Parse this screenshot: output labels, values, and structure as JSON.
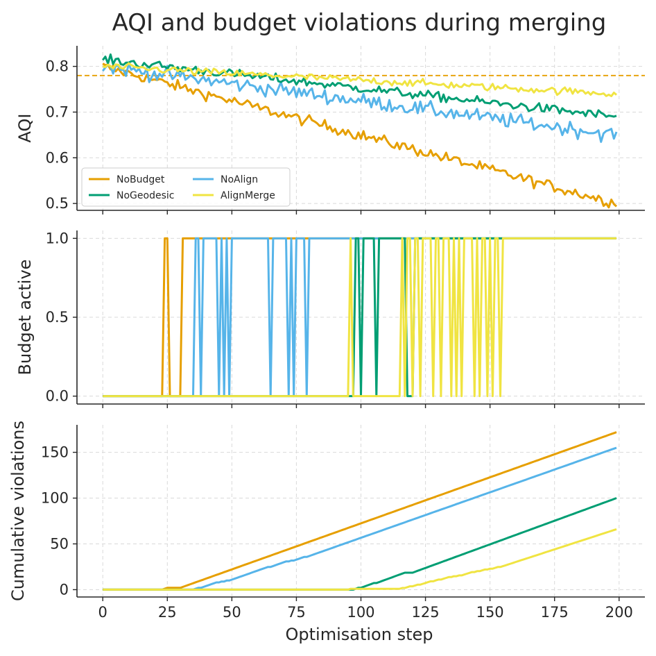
{
  "chart_data": {
    "type": "line",
    "title": "AQI and budget violations during merging",
    "xlabel": "Optimisation step",
    "xlim": [
      -10,
      210
    ],
    "x_ticks": [
      0,
      25,
      50,
      75,
      100,
      125,
      150,
      175,
      200
    ],
    "n_steps": 200,
    "colors": {
      "NoBudget": "#E69F00",
      "NoAlign": "#56B4E9",
      "NoGeodesic": "#009E73",
      "AlignMerge": "#F0E442"
    },
    "panels": [
      {
        "id": "aqi",
        "ylabel": "AQI",
        "ylim": [
          0.485,
          0.845
        ],
        "y_ticks": [
          0.5,
          0.6,
          0.7,
          0.8
        ],
        "reference_line": {
          "y": 0.78,
          "style": "dashed",
          "color": "#E69F00"
        },
        "legend": {
          "position": "lower-left",
          "columns": 2
        },
        "series": [
          {
            "name": "NoBudget",
            "start": 0.8,
            "end": 0.5,
            "noise": 0.012
          },
          {
            "name": "NoAlign",
            "start": 0.8,
            "end": 0.65,
            "noise": 0.016
          },
          {
            "name": "NoGeodesic",
            "start": 0.815,
            "end": 0.69,
            "noise": 0.01
          },
          {
            "name": "AlignMerge",
            "start": 0.8,
            "end": 0.74,
            "noise": 0.008
          }
        ]
      },
      {
        "id": "budget",
        "ylabel": "Budget active",
        "ylim": [
          -0.05,
          1.05
        ],
        "y_ticks": [
          0.0,
          0.5,
          1.0
        ],
        "series": [
          {
            "name": "NoBudget",
            "on_from": 31,
            "on_blips": [
              24,
              25
            ],
            "off_after": []
          },
          {
            "name": "NoAlign",
            "on_from": 36,
            "on_blips": [],
            "off_after": [
              38,
              45,
              47,
              49,
              65,
              72,
              74,
              79
            ]
          },
          {
            "name": "NoGeodesic",
            "on_from": 98,
            "on_blips": [],
            "off_after": [
              100,
              106,
              118,
              119,
              120
            ]
          },
          {
            "name": "AlignMerge",
            "on_from": 96,
            "on_blips": [],
            "off_after": [
              97,
              98,
              99,
              100,
              101,
              102,
              103,
              104,
              105,
              106,
              107,
              108,
              109,
              110,
              111,
              112,
              113,
              114,
              115,
              117,
              120,
              123,
              128,
              131,
              135,
              137,
              139,
              144,
              146,
              149,
              151,
              154
            ]
          }
        ]
      },
      {
        "id": "cumulative",
        "ylabel": "Cumulative violations",
        "ylim": [
          -8,
          180
        ],
        "y_ticks": [
          0,
          50,
          100,
          150
        ],
        "series": [
          {
            "name": "NoBudget",
            "final": 172
          },
          {
            "name": "NoAlign",
            "final": 155
          },
          {
            "name": "NoGeodesic",
            "final": 100
          },
          {
            "name": "AlignMerge",
            "final": 66
          }
        ]
      }
    ]
  }
}
